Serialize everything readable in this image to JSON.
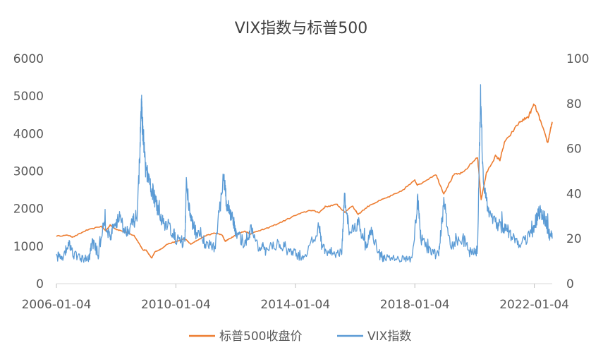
{
  "chart_data": {
    "type": "line",
    "title": "VIX指数与标普500",
    "x_tick_labels": [
      "2006-01-04",
      "2010-01-04",
      "2014-01-04",
      "2018-01-04",
      "2022-01-04"
    ],
    "x_ticks_year": [
      2006.0,
      2010.0,
      2014.0,
      2018.0,
      2022.0
    ],
    "x_range": [
      2006.0,
      2022.6
    ],
    "y_left_ticks": [
      "0",
      "1000",
      "2000",
      "3000",
      "4000",
      "5000",
      "6000"
    ],
    "y_left_range": [
      0,
      6000
    ],
    "y_right_ticks": [
      "0",
      "20",
      "40",
      "60",
      "80",
      "100"
    ],
    "y_right_range": [
      0,
      100
    ],
    "legend_position": "bottom",
    "series": [
      {
        "name": "标普500收盘价",
        "axis": "left",
        "color": "#ED7D31",
        "points": [
          [
            2006.0,
            1270
          ],
          [
            2006.4,
            1290
          ],
          [
            2006.55,
            1240
          ],
          [
            2007.0,
            1420
          ],
          [
            2007.5,
            1530
          ],
          [
            2007.65,
            1410
          ],
          [
            2007.8,
            1560
          ],
          [
            2008.0,
            1450
          ],
          [
            2008.3,
            1380
          ],
          [
            2008.6,
            1280
          ],
          [
            2008.75,
            1100
          ],
          [
            2008.9,
            890
          ],
          [
            2009.0,
            900
          ],
          [
            2009.1,
            780
          ],
          [
            2009.19,
            680
          ],
          [
            2009.3,
            850
          ],
          [
            2009.5,
            920
          ],
          [
            2009.7,
            1050
          ],
          [
            2010.0,
            1120
          ],
          [
            2010.3,
            1200
          ],
          [
            2010.5,
            1050
          ],
          [
            2010.7,
            1150
          ],
          [
            2011.0,
            1280
          ],
          [
            2011.3,
            1350
          ],
          [
            2011.55,
            1300
          ],
          [
            2011.65,
            1130
          ],
          [
            2011.8,
            1200
          ],
          [
            2012.0,
            1300
          ],
          [
            2012.3,
            1400
          ],
          [
            2012.5,
            1330
          ],
          [
            2012.8,
            1420
          ],
          [
            2013.0,
            1460
          ],
          [
            2013.5,
            1630
          ],
          [
            2014.0,
            1820
          ],
          [
            2014.5,
            1960
          ],
          [
            2014.8,
            1900
          ],
          [
            2015.0,
            2050
          ],
          [
            2015.4,
            2110
          ],
          [
            2015.65,
            1900
          ],
          [
            2015.9,
            2080
          ],
          [
            2016.1,
            1850
          ],
          [
            2016.5,
            2100
          ],
          [
            2017.0,
            2270
          ],
          [
            2017.5,
            2440
          ],
          [
            2018.0,
            2750
          ],
          [
            2018.1,
            2620
          ],
          [
            2018.7,
            2920
          ],
          [
            2018.97,
            2400
          ],
          [
            2019.3,
            2900
          ],
          [
            2019.6,
            2950
          ],
          [
            2020.1,
            3380
          ],
          [
            2020.22,
            2240
          ],
          [
            2020.4,
            2950
          ],
          [
            2020.7,
            3400
          ],
          [
            2020.85,
            3300
          ],
          [
            2021.0,
            3750
          ],
          [
            2021.5,
            4300
          ],
          [
            2021.8,
            4450
          ],
          [
            2022.0,
            4790
          ],
          [
            2022.2,
            4350
          ],
          [
            2022.45,
            3750
          ],
          [
            2022.55,
            4150
          ],
          [
            2022.6,
            4280
          ]
        ]
      },
      {
        "name": "VIX指数",
        "axis": "right",
        "color": "#5B9BD5",
        "points": [
          [
            2006.0,
            11.5
          ],
          [
            2006.2,
            12
          ],
          [
            2006.4,
            18
          ],
          [
            2006.6,
            13
          ],
          [
            2006.9,
            10.5
          ],
          [
            2007.1,
            11
          ],
          [
            2007.2,
            19
          ],
          [
            2007.4,
            13
          ],
          [
            2007.6,
            28
          ],
          [
            2007.8,
            20
          ],
          [
            2007.9,
            25
          ],
          [
            2008.1,
            30
          ],
          [
            2008.3,
            23
          ],
          [
            2008.5,
            26
          ],
          [
            2008.7,
            30
          ],
          [
            2008.8,
            60
          ],
          [
            2008.85,
            80
          ],
          [
            2008.9,
            65
          ],
          [
            2009.0,
            50
          ],
          [
            2009.1,
            45
          ],
          [
            2009.25,
            40
          ],
          [
            2009.4,
            32
          ],
          [
            2009.6,
            27
          ],
          [
            2009.8,
            25
          ],
          [
            2010.0,
            20
          ],
          [
            2010.3,
            18
          ],
          [
            2010.35,
            45
          ],
          [
            2010.5,
            28
          ],
          [
            2010.7,
            22
          ],
          [
            2011.0,
            18
          ],
          [
            2011.3,
            16
          ],
          [
            2011.6,
            47
          ],
          [
            2011.7,
            35
          ],
          [
            2011.9,
            30
          ],
          [
            2012.0,
            22
          ],
          [
            2012.3,
            18
          ],
          [
            2012.5,
            24
          ],
          [
            2012.8,
            16
          ],
          [
            2013.0,
            14
          ],
          [
            2013.4,
            18
          ],
          [
            2013.7,
            15
          ],
          [
            2014.0,
            13
          ],
          [
            2014.3,
            12
          ],
          [
            2014.8,
            25
          ],
          [
            2014.9,
            15
          ],
          [
            2015.2,
            14
          ],
          [
            2015.55,
            13
          ],
          [
            2015.65,
            40
          ],
          [
            2015.8,
            22
          ],
          [
            2016.1,
            27
          ],
          [
            2016.4,
            15
          ],
          [
            2016.5,
            25
          ],
          [
            2016.8,
            13
          ],
          [
            2017.0,
            11
          ],
          [
            2017.5,
            10.5
          ],
          [
            2017.9,
            10
          ],
          [
            2018.1,
            37
          ],
          [
            2018.2,
            20
          ],
          [
            2018.5,
            14
          ],
          [
            2018.8,
            13
          ],
          [
            2018.97,
            36
          ],
          [
            2019.2,
            16
          ],
          [
            2019.6,
            20
          ],
          [
            2019.9,
            13
          ],
          [
            2020.1,
            15
          ],
          [
            2020.2,
            82
          ],
          [
            2020.3,
            45
          ],
          [
            2020.5,
            30
          ],
          [
            2020.8,
            26
          ],
          [
            2021.0,
            25
          ],
          [
            2021.2,
            22
          ],
          [
            2021.5,
            17
          ],
          [
            2021.9,
            22
          ],
          [
            2022.1,
            30
          ],
          [
            2022.25,
            32
          ],
          [
            2022.4,
            27
          ],
          [
            2022.5,
            22
          ],
          [
            2022.6,
            20
          ]
        ]
      }
    ]
  }
}
